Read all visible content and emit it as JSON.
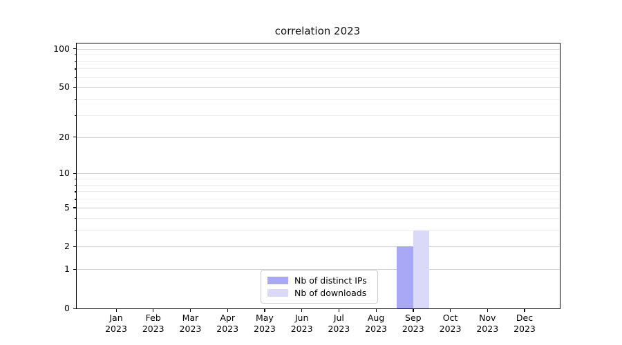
{
  "chart_data": {
    "type": "bar",
    "title": "correlation 2023",
    "scale": "log1p",
    "categories": [
      "Jan 2023",
      "Feb 2023",
      "Mar 2023",
      "Apr 2023",
      "May 2023",
      "Jun 2023",
      "Jul 2023",
      "Aug 2023",
      "Sep 2023",
      "Oct 2023",
      "Nov 2023",
      "Dec 2023"
    ],
    "series": [
      {
        "name": "Nb of distinct IPs",
        "color": "#a8a8f5",
        "values": [
          0,
          0,
          0,
          0,
          0,
          0,
          0,
          0,
          2,
          0,
          0,
          0
        ]
      },
      {
        "name": "Nb of downloads",
        "color": "#dadaf8",
        "values": [
          0,
          0,
          0,
          0,
          0,
          0,
          0,
          0,
          3,
          0,
          0,
          0
        ]
      }
    ],
    "y_tick_values": [
      0,
      1,
      2,
      5,
      10,
      20,
      50,
      100
    ],
    "y_minor_gridlines": [
      3,
      4,
      6,
      7,
      8,
      9,
      30,
      40,
      60,
      70,
      80,
      90
    ],
    "ylim": [
      0,
      110
    ],
    "grid": true,
    "legend_position": "lower center",
    "colors": {
      "grid_major": "#d2d2d2",
      "grid_minor": "#efefef",
      "spine": "#000000"
    }
  }
}
